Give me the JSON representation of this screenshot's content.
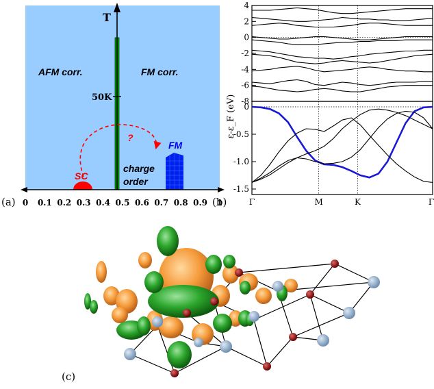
{
  "panels": {
    "a": {
      "label": "(a)"
    },
    "b": {
      "label": "(b)"
    },
    "c": {
      "label": "(c)"
    }
  },
  "phase_diagram": {
    "y_axis_label": "T",
    "x_ticks": [
      "0",
      "0.1",
      "0.2",
      "0.3",
      "0.4",
      "0.5",
      "0.6",
      "0.7",
      "0.8",
      "0.9",
      "1"
    ],
    "temperature_mark": "50K",
    "regions": {
      "afm": "AFM corr.",
      "fm_corr": "FM corr.",
      "sc": "SC",
      "fm": "FM",
      "charge_order_line1": "charge",
      "charge_order_line2": "order",
      "question": "?"
    },
    "colors": {
      "background": "#99ccff",
      "sc": "#ff0000",
      "fm": "#0000ff",
      "line": "#00aa00",
      "arrow": "#ff0000"
    }
  },
  "chart_data": [
    {
      "type": "line",
      "panel": "b-top",
      "ylabel": "ε-ε_F (eV)",
      "ylim": [
        -8,
        4
      ],
      "y_ticks": [
        "4",
        "2",
        "0",
        "-2",
        "-4",
        "-6",
        "-8"
      ],
      "x_ticks": [
        "Γ",
        "M",
        "K",
        "Γ"
      ],
      "x": [
        0,
        0.05,
        0.1,
        0.15,
        0.2,
        0.25,
        0.3,
        0.35,
        0.4,
        0.45,
        0.5,
        0.55,
        0.6,
        0.65,
        0.7,
        0.75,
        0.8,
        0.85,
        0.9,
        0.95,
        1
      ],
      "series": [
        {
          "values": [
            3.4,
            3.4,
            3.4,
            3.5,
            3.6,
            3.7,
            3.6,
            3.5,
            3.3,
            3.1,
            3.0,
            3.0,
            3.1,
            3.2,
            3.3,
            3.4,
            3.5,
            3.6,
            3.6,
            3.6,
            3.6
          ]
        },
        {
          "values": [
            2.5,
            2.4,
            2.3,
            2.2,
            2.1,
            2.0,
            2.0,
            2.1,
            2.2,
            2.3,
            2.5,
            2.4,
            2.3,
            2.3,
            2.2,
            2.2,
            2.1,
            2.1,
            2.2,
            2.3,
            2.4
          ]
        },
        {
          "values": [
            1.5,
            1.6,
            1.7,
            1.8,
            1.7,
            1.5,
            1.4,
            1.3,
            1.3,
            1.3,
            1.4,
            1.5,
            1.7,
            1.8,
            1.8,
            1.7,
            1.6,
            1.5,
            1.5,
            1.5,
            1.5
          ]
        },
        {
          "values": [
            0.1,
            0.0,
            -0.1,
            -0.2,
            -0.2,
            -0.1,
            0.0,
            0.1,
            0.1,
            0.0,
            -0.1,
            -0.2,
            -0.3,
            -0.3,
            -0.2,
            -0.1,
            0.0,
            0.1,
            0.1,
            0.1,
            0.1
          ]
        },
        {
          "values": [
            -0.3,
            -0.4,
            -0.5,
            -0.6,
            -0.8,
            -0.9,
            -0.9,
            -0.9,
            -0.8,
            -0.7,
            -0.6,
            -0.6,
            -0.5,
            -0.5,
            -0.4,
            -0.4,
            -0.4,
            -0.3,
            -0.3,
            -0.3,
            -0.3
          ]
        },
        {
          "values": [
            -1.6,
            -1.7,
            -1.8,
            -2.0,
            -2.2,
            -2.4,
            -2.5,
            -2.6,
            -2.6,
            -2.7,
            -2.6,
            -2.4,
            -2.3,
            -2.1,
            -2.0,
            -1.9,
            -1.8,
            -1.7,
            -1.7,
            -1.6,
            -1.6
          ]
        },
        {
          "values": [
            -2.1,
            -2.2,
            -2.3,
            -2.5,
            -2.8,
            -3.1,
            -3.2,
            -3.3,
            -3.2,
            -3.0,
            -2.9,
            -3.0,
            -3.1,
            -3.2,
            -3.1,
            -2.9,
            -2.7,
            -2.5,
            -2.3,
            -2.2,
            -2.1
          ]
        },
        {
          "values": [
            -4.2,
            -4.1,
            -4.0,
            -3.8,
            -3.7,
            -3.6,
            -3.8,
            -4.1,
            -4.3,
            -4.2,
            -4.1,
            -4.0,
            -3.8,
            -3.7,
            -3.8,
            -4.0,
            -4.1,
            -4.2,
            -4.2,
            -4.3,
            -4.3
          ]
        },
        {
          "values": [
            -5.6,
            -5.7,
            -5.8,
            -5.6,
            -5.4,
            -5.3,
            -5.5,
            -5.9,
            -6.0,
            -5.8,
            -5.6,
            -5.7,
            -5.9,
            -6.0,
            -5.9,
            -5.7,
            -5.6,
            -5.6,
            -5.6,
            -5.5,
            -5.5
          ]
        },
        {
          "values": [
            -6.1,
            -6.2,
            -6.4,
            -6.6,
            -6.7,
            -6.8,
            -6.7,
            -6.5,
            -6.4,
            -6.5,
            -6.7,
            -6.8,
            -6.8,
            -6.6,
            -6.4,
            -6.2,
            -6.1,
            -6.0,
            -6.0,
            -6.0,
            -6.0
          ]
        }
      ]
    },
    {
      "type": "line",
      "panel": "b-bottom",
      "ylim": [
        -1.6,
        0.1
      ],
      "y_ticks": [
        "0",
        "-0.5",
        "-1.0",
        "-1.5"
      ],
      "x_ticks": [
        "Γ",
        "M",
        "K",
        "Γ"
      ],
      "x": [
        0,
        0.05,
        0.1,
        0.15,
        0.2,
        0.25,
        0.3,
        0.35,
        0.4,
        0.45,
        0.5,
        0.55,
        0.6,
        0.65,
        0.7,
        0.75,
        0.8,
        0.85,
        0.9,
        0.95,
        1
      ],
      "series": [
        {
          "highlight": true,
          "values": [
            0.0,
            -0.01,
            -0.04,
            -0.12,
            -0.28,
            -0.55,
            -0.8,
            -0.98,
            -1.05,
            -1.06,
            -1.1,
            -1.17,
            -1.25,
            -1.29,
            -1.22,
            -1.0,
            -0.65,
            -0.3,
            -0.08,
            -0.01,
            0.0
          ]
        },
        {
          "values": [
            -1.38,
            -1.25,
            -1.05,
            -0.82,
            -0.62,
            -0.48,
            -0.4,
            -0.41,
            -0.45,
            -0.35,
            -0.24,
            -0.2,
            -0.33,
            -0.52,
            -0.7,
            -0.88,
            -1.04,
            -1.17,
            -1.28,
            -1.36,
            -1.38
          ]
        },
        {
          "values": [
            -1.38,
            -1.3,
            -1.2,
            -1.08,
            -0.98,
            -0.93,
            -0.95,
            -1.0,
            -1.04,
            -1.03,
            -1.0,
            -0.92,
            -0.78,
            -0.58,
            -0.38,
            -0.22,
            -0.12,
            -0.08,
            -0.1,
            -0.2,
            -0.4
          ]
        },
        {
          "values": [
            -1.38,
            -1.32,
            -1.24,
            -1.13,
            -1.02,
            -0.93,
            -0.86,
            -0.8,
            -0.72,
            -0.58,
            -0.4,
            -0.26,
            -0.14,
            -0.06,
            -0.04,
            -0.06,
            -0.1,
            -0.16,
            -0.24,
            -0.32,
            -0.4
          ]
        }
      ]
    }
  ]
}
